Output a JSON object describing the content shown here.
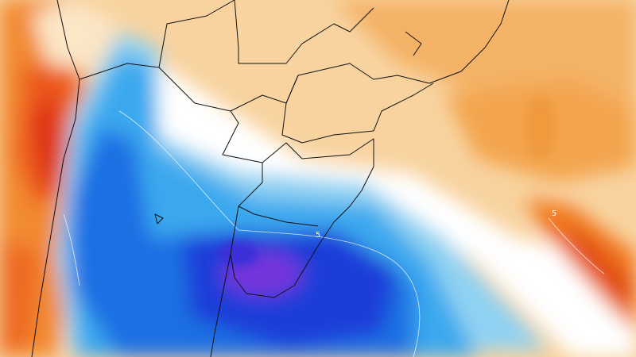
{
  "contour_labels": [
    "5",
    "5"
  ]
}
